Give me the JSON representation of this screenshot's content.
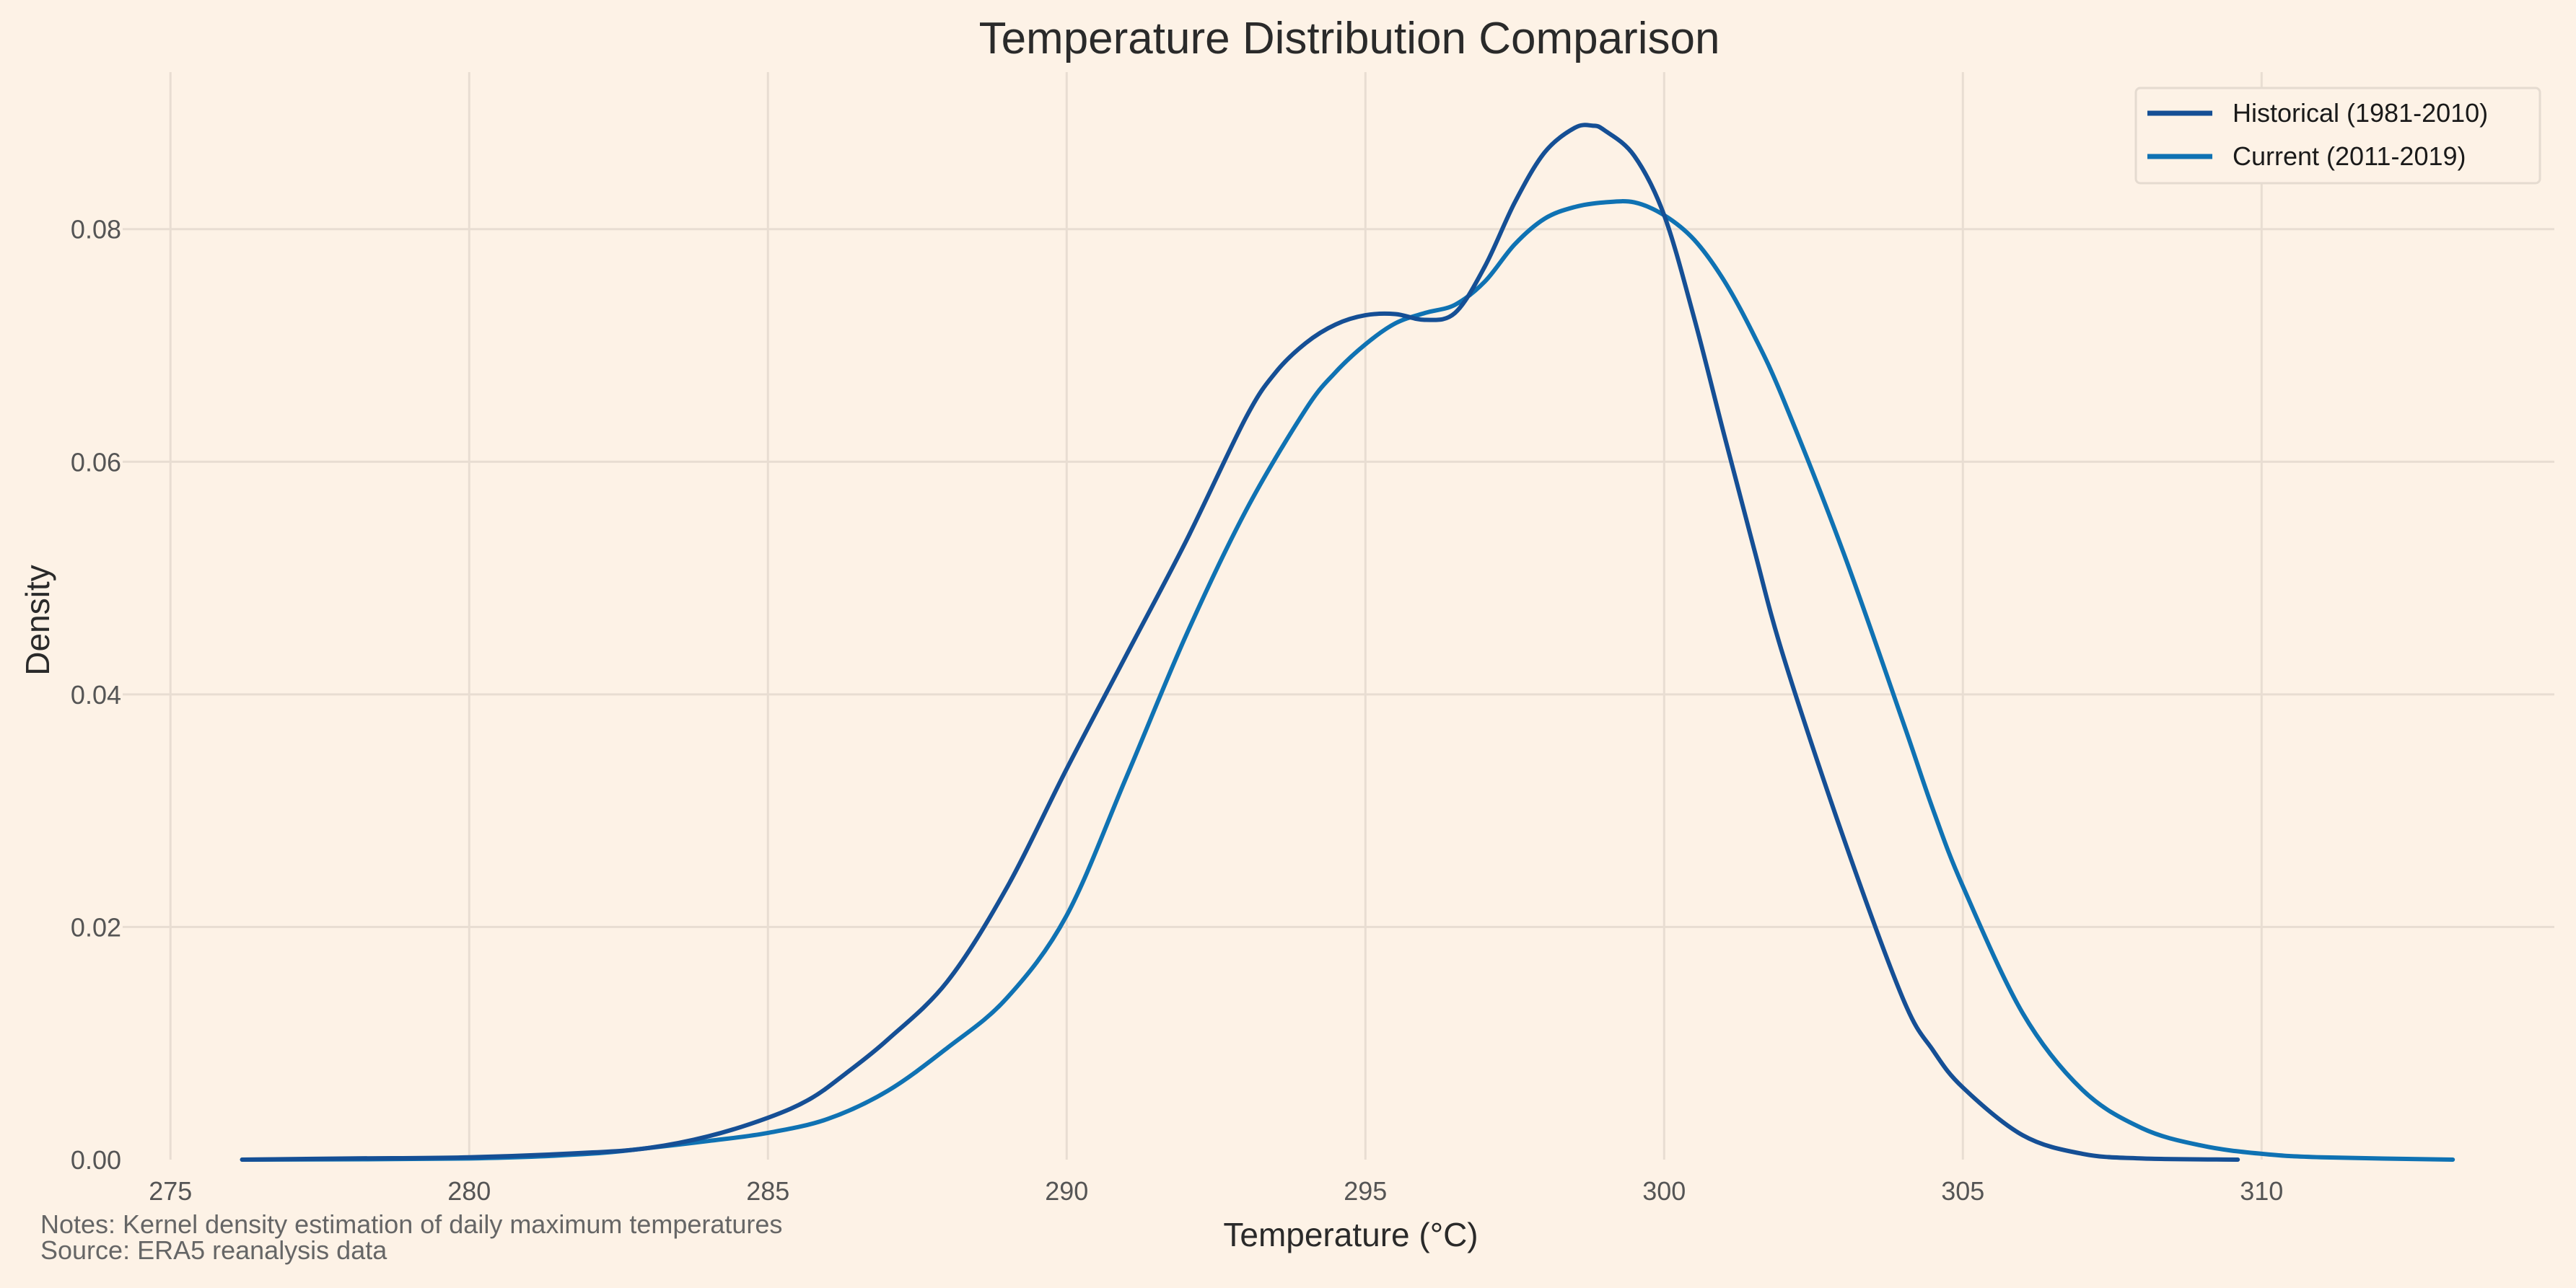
{
  "chart_data": {
    "type": "line",
    "title": "Temperature Distribution Comparison",
    "xlabel": "Temperature (°C)",
    "ylabel": "Density",
    "xlim": [
      274.2,
      314.9
    ],
    "ylim": [
      0,
      0.0935
    ],
    "x_ticks": [
      275,
      280,
      285,
      290,
      295,
      300,
      305,
      310
    ],
    "y_ticks": [
      0.0,
      0.02,
      0.04,
      0.06,
      0.08
    ],
    "y_tick_labels": [
      "0.00",
      "0.02",
      "0.04",
      "0.06",
      "0.08"
    ],
    "grid": true,
    "legend_position": "top-right",
    "series": [
      {
        "name": "Historical (1981-2010)",
        "color": "#154f95",
        "x": [
          276.2,
          278.0,
          280.0,
          282.0,
          283.0,
          284.0,
          285.0,
          285.7,
          286.3,
          287.0,
          288.0,
          289.0,
          290.0,
          291.0,
          292.0,
          293.0,
          293.5,
          294.0,
          294.5,
          295.0,
          295.5,
          296.0,
          296.5,
          297.0,
          297.5,
          298.0,
          298.5,
          298.8,
          299.0,
          299.5,
          300.0,
          300.5,
          301.0,
          301.5,
          302.0,
          303.0,
          304.0,
          304.5,
          305.0,
          306.0,
          307.0,
          308.0,
          309.6
        ],
        "y": [
          0.0,
          0.0001,
          0.0002,
          0.0006,
          0.001,
          0.002,
          0.0036,
          0.0052,
          0.0074,
          0.0103,
          0.0153,
          0.0234,
          0.0336,
          0.0434,
          0.0532,
          0.0638,
          0.0677,
          0.0702,
          0.0718,
          0.0726,
          0.0727,
          0.0722,
          0.0728,
          0.0768,
          0.0823,
          0.0866,
          0.0887,
          0.0889,
          0.0885,
          0.0863,
          0.0812,
          0.0724,
          0.0624,
          0.0526,
          0.0432,
          0.0277,
          0.0138,
          0.0094,
          0.0062,
          0.0021,
          0.0005,
          0.0001,
          0.0
        ]
      },
      {
        "name": "Current (2011-2019)",
        "color": "#0f72b3",
        "x": [
          276.2,
          280.0,
          282.0,
          283.0,
          284.0,
          285.0,
          286.0,
          287.0,
          288.0,
          289.0,
          290.0,
          291.0,
          292.0,
          293.0,
          294.0,
          294.5,
          295.0,
          295.5,
          296.0,
          296.5,
          297.0,
          297.5,
          298.0,
          298.5,
          299.0,
          299.5,
          300.0,
          300.5,
          301.0,
          301.5,
          302.0,
          303.0,
          304.0,
          304.5,
          305.0,
          306.0,
          307.0,
          308.0,
          309.0,
          310.0,
          311.0,
          313.2
        ],
        "y": [
          0.0,
          0.0001,
          0.0005,
          0.001,
          0.0016,
          0.0023,
          0.0035,
          0.0059,
          0.0096,
          0.0139,
          0.021,
          0.0329,
          0.0451,
          0.0558,
          0.0645,
          0.0677,
          0.0701,
          0.0719,
          0.0728,
          0.0735,
          0.0755,
          0.0787,
          0.0809,
          0.0819,
          0.0823,
          0.0823,
          0.0812,
          0.0791,
          0.0756,
          0.0709,
          0.0653,
          0.0522,
          0.0376,
          0.0301,
          0.0235,
          0.0126,
          0.006,
          0.0027,
          0.0012,
          0.0005,
          0.0002,
          0.0
        ]
      }
    ]
  },
  "notes": {
    "line1": "Notes: Kernel density estimation of daily maximum temperatures",
    "line2": "Source: ERA5 reanalysis data"
  }
}
